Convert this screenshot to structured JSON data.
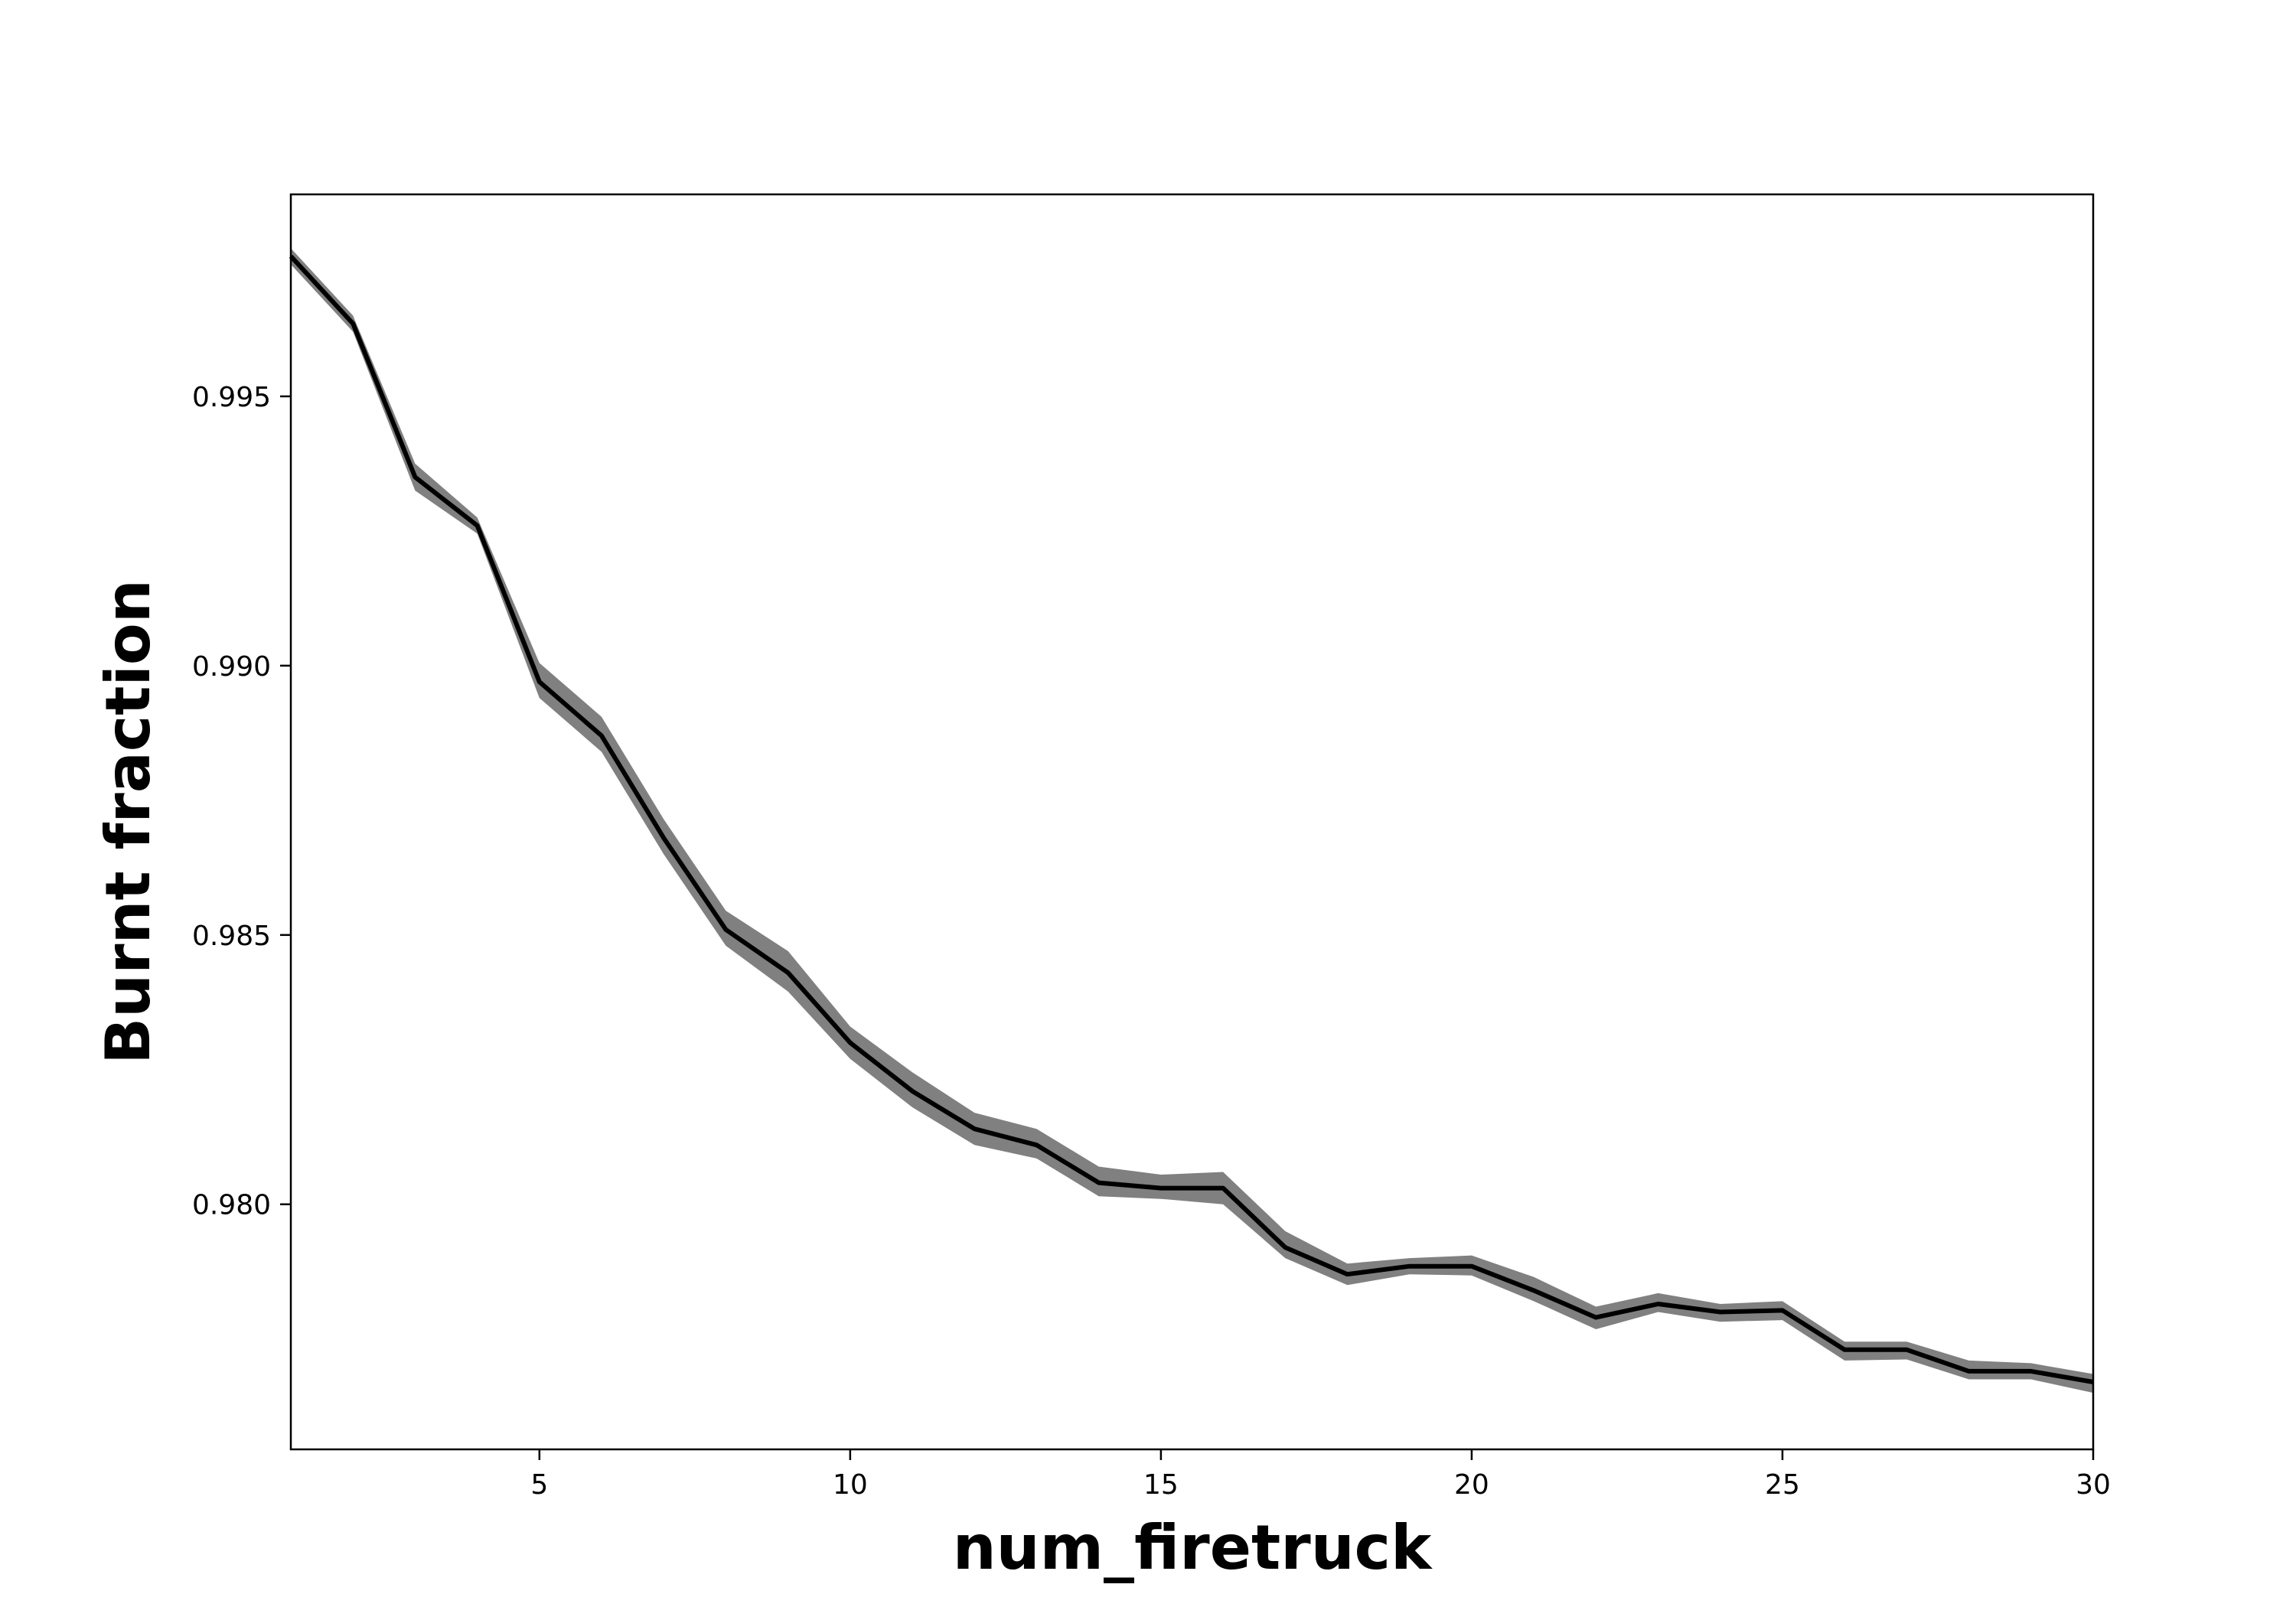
{
  "chart_data": {
    "type": "line",
    "title": "",
    "xlabel": "num_firetruck",
    "ylabel": "Burnt fraction",
    "xlim": [
      1,
      30
    ],
    "ylim": [
      0.97545,
      0.99875
    ],
    "xticks": [
      5,
      10,
      15,
      20,
      25,
      30
    ],
    "yticks": [
      0.98,
      0.985,
      0.99,
      0.995
    ],
    "xtick_labels": [
      "5",
      "10",
      "15",
      "20",
      "25",
      "30"
    ],
    "ytick_labels": [
      "0.980",
      "0.985",
      "0.990",
      "0.995"
    ],
    "grid": false,
    "legend": "none",
    "colors": {
      "line": "#000000",
      "band": "#808080",
      "axes": "#000000"
    },
    "series": [
      {
        "x": [
          1,
          2,
          3,
          4,
          5,
          6,
          7,
          8,
          9,
          10,
          11,
          12,
          13,
          14,
          15,
          16,
          17,
          18,
          19,
          20,
          21,
          22,
          23,
          24,
          25,
          26,
          27,
          28,
          29,
          30
        ],
        "values": [
          0.9976,
          0.99635,
          0.9935,
          0.9926,
          0.9897,
          0.9887,
          0.9868,
          0.9851,
          0.9843,
          0.983,
          0.9821,
          0.9814,
          0.9811,
          0.9804,
          0.9803,
          0.9803,
          0.9792,
          0.9787,
          0.97885,
          0.97885,
          0.9784,
          0.9779,
          0.97815,
          0.978,
          0.97803,
          0.9773,
          0.9773,
          0.9769,
          0.9769,
          0.9767
        ],
        "lower": [
          0.99745,
          0.9962,
          0.99325,
          0.99245,
          0.9894,
          0.9884,
          0.9865,
          0.9848,
          0.98395,
          0.9827,
          0.9818,
          0.9811,
          0.98085,
          0.98015,
          0.9801,
          0.98,
          0.979,
          0.9785,
          0.9787,
          0.97868,
          0.9782,
          0.97768,
          0.978,
          0.97782,
          0.97785,
          0.9771,
          0.97712,
          0.97675,
          0.97675,
          0.9765
        ],
        "upper": [
          0.99775,
          0.9965,
          0.99375,
          0.99275,
          0.99005,
          0.98905,
          0.98715,
          0.98545,
          0.9847,
          0.9833,
          0.98245,
          0.9817,
          0.9814,
          0.9807,
          0.98055,
          0.9806,
          0.9795,
          0.9789,
          0.979,
          0.97905,
          0.97865,
          0.9781,
          0.97835,
          0.97815,
          0.9782,
          0.97745,
          0.97745,
          0.9771,
          0.97705,
          0.97685
        ]
      }
    ]
  }
}
